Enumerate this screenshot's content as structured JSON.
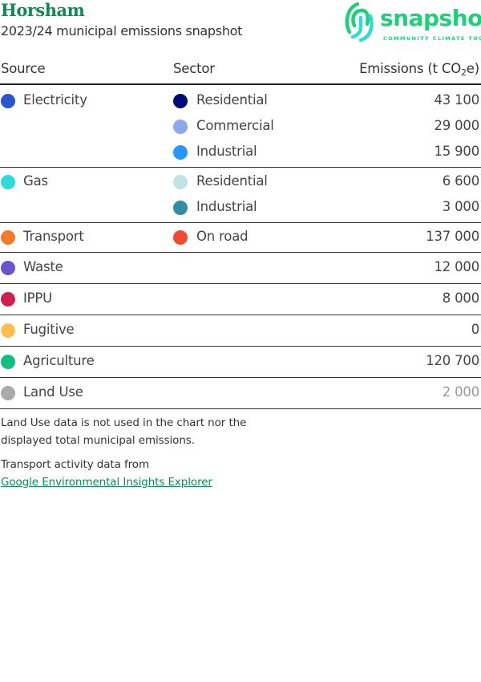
{
  "header": {
    "title": "Horsham",
    "subtitle": "2023/24 municipal emissions snapshot"
  },
  "logo": {
    "word": "snapshot",
    "tagline": "COMMUNITY CLIMATE TOOL",
    "color": "#1fd07a"
  },
  "table": {
    "columns": {
      "source": "Source",
      "sector": "Sector",
      "emissions_prefix": "Emissions (t CO",
      "emissions_sub": "2",
      "emissions_suffix": "e)"
    },
    "rows": [
      {
        "source": "Electricity",
        "source_color": "#2a55d0",
        "sectors": [
          {
            "sector": "Residential",
            "color": "#000a78",
            "value": "43 100"
          },
          {
            "sector": "Commercial",
            "color": "#8ea8ee",
            "value": "29 000"
          },
          {
            "sector": "Industrial",
            "color": "#2898ff",
            "value": "15 900"
          }
        ]
      },
      {
        "source": "Gas",
        "source_color": "#2ddadc",
        "sectors": [
          {
            "sector": "Residential",
            "color": "#bde3e4",
            "value": "6 600"
          },
          {
            "sector": "Industrial",
            "color": "#2e8fa0",
            "value": "3 000"
          }
        ]
      },
      {
        "source": "Transport",
        "source_color": "#f47a30",
        "sectors": [
          {
            "sector": "On road",
            "color": "#f04a30",
            "value": "137 000"
          }
        ]
      },
      {
        "source": "Waste",
        "source_color": "#6a55cc",
        "value": "12 000"
      },
      {
        "source": "IPPU",
        "source_color": "#d02050",
        "value": "8 000"
      },
      {
        "source": "Fugitive",
        "source_color": "#ffbf50",
        "value": "0"
      },
      {
        "source": "Agriculture",
        "source_color": "#10c080",
        "value": "120 700"
      },
      {
        "source": "Land Use",
        "source_color": "#aaaaaa",
        "value": "2 000"
      }
    ]
  },
  "notes": {
    "land_use_line1": "Land Use data is not used in the chart nor the",
    "land_use_line2": "displayed total municipal emissions.",
    "transport": "Transport activity data from",
    "link": "Google Environmental Insights Explorer"
  }
}
